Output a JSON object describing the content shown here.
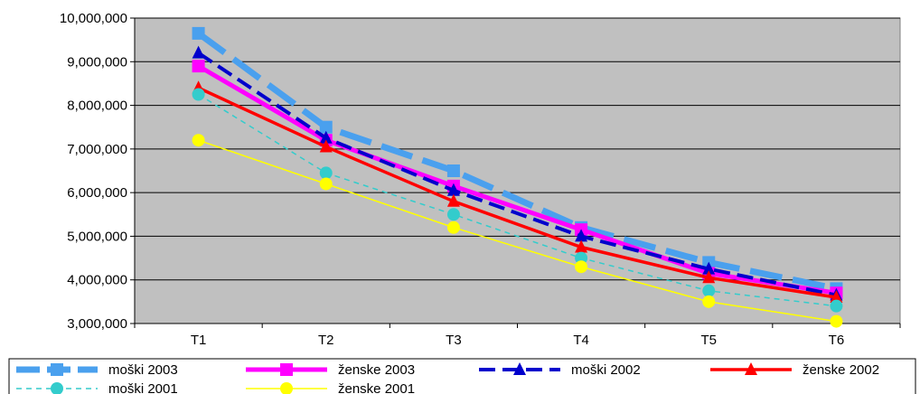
{
  "chart_data": {
    "type": "line",
    "title": "",
    "xlabel": "",
    "ylabel": "",
    "categories": [
      "T1",
      "T2",
      "T3",
      "T4",
      "T5",
      "T6"
    ],
    "ylim": [
      3000000,
      10000000
    ],
    "ytick_values": [
      3000000,
      4000000,
      5000000,
      6000000,
      7000000,
      8000000,
      9000000,
      10000000
    ],
    "ytick_labels": [
      "3,000,000",
      "4,000,000",
      "5,000,000",
      "6,000,000",
      "7,000,000",
      "8,000,000",
      "9,000,000",
      "10,000,000"
    ],
    "grid": "horizontal",
    "plot_background": "#c0c0c0",
    "legend_position": "bottom",
    "series": [
      {
        "name": "moški 2003",
        "values": [
          9650000,
          7500000,
          6500000,
          5200000,
          4400000,
          3800000
        ],
        "color": "#4aa0ee",
        "marker": "square",
        "dash": "long-dash"
      },
      {
        "name": "ženske 2003",
        "values": [
          8900000,
          7200000,
          6150000,
          5150000,
          4150000,
          3700000
        ],
        "color": "#ff00ff",
        "marker": "square",
        "dash": "solid"
      },
      {
        "name": "moški 2002",
        "values": [
          9200000,
          7250000,
          6050000,
          5000000,
          4250000,
          3650000
        ],
        "color": "#0000cc",
        "marker": "triangle",
        "dash": "dash"
      },
      {
        "name": "ženske 2002",
        "values": [
          8400000,
          7050000,
          5800000,
          4750000,
          4050000,
          3600000
        ],
        "color": "#ff0000",
        "marker": "triangle",
        "dash": "solid"
      },
      {
        "name": "moški 2001",
        "values": [
          8250000,
          6450000,
          5500000,
          4500000,
          3750000,
          3400000
        ],
        "color": "#33cccc",
        "marker": "circle",
        "dash": "short-dash"
      },
      {
        "name": "ženske 2001",
        "values": [
          7200000,
          6200000,
          5200000,
          4300000,
          3500000,
          3050000
        ],
        "color": "#ffff00",
        "marker": "circle",
        "dash": "solid"
      }
    ]
  }
}
